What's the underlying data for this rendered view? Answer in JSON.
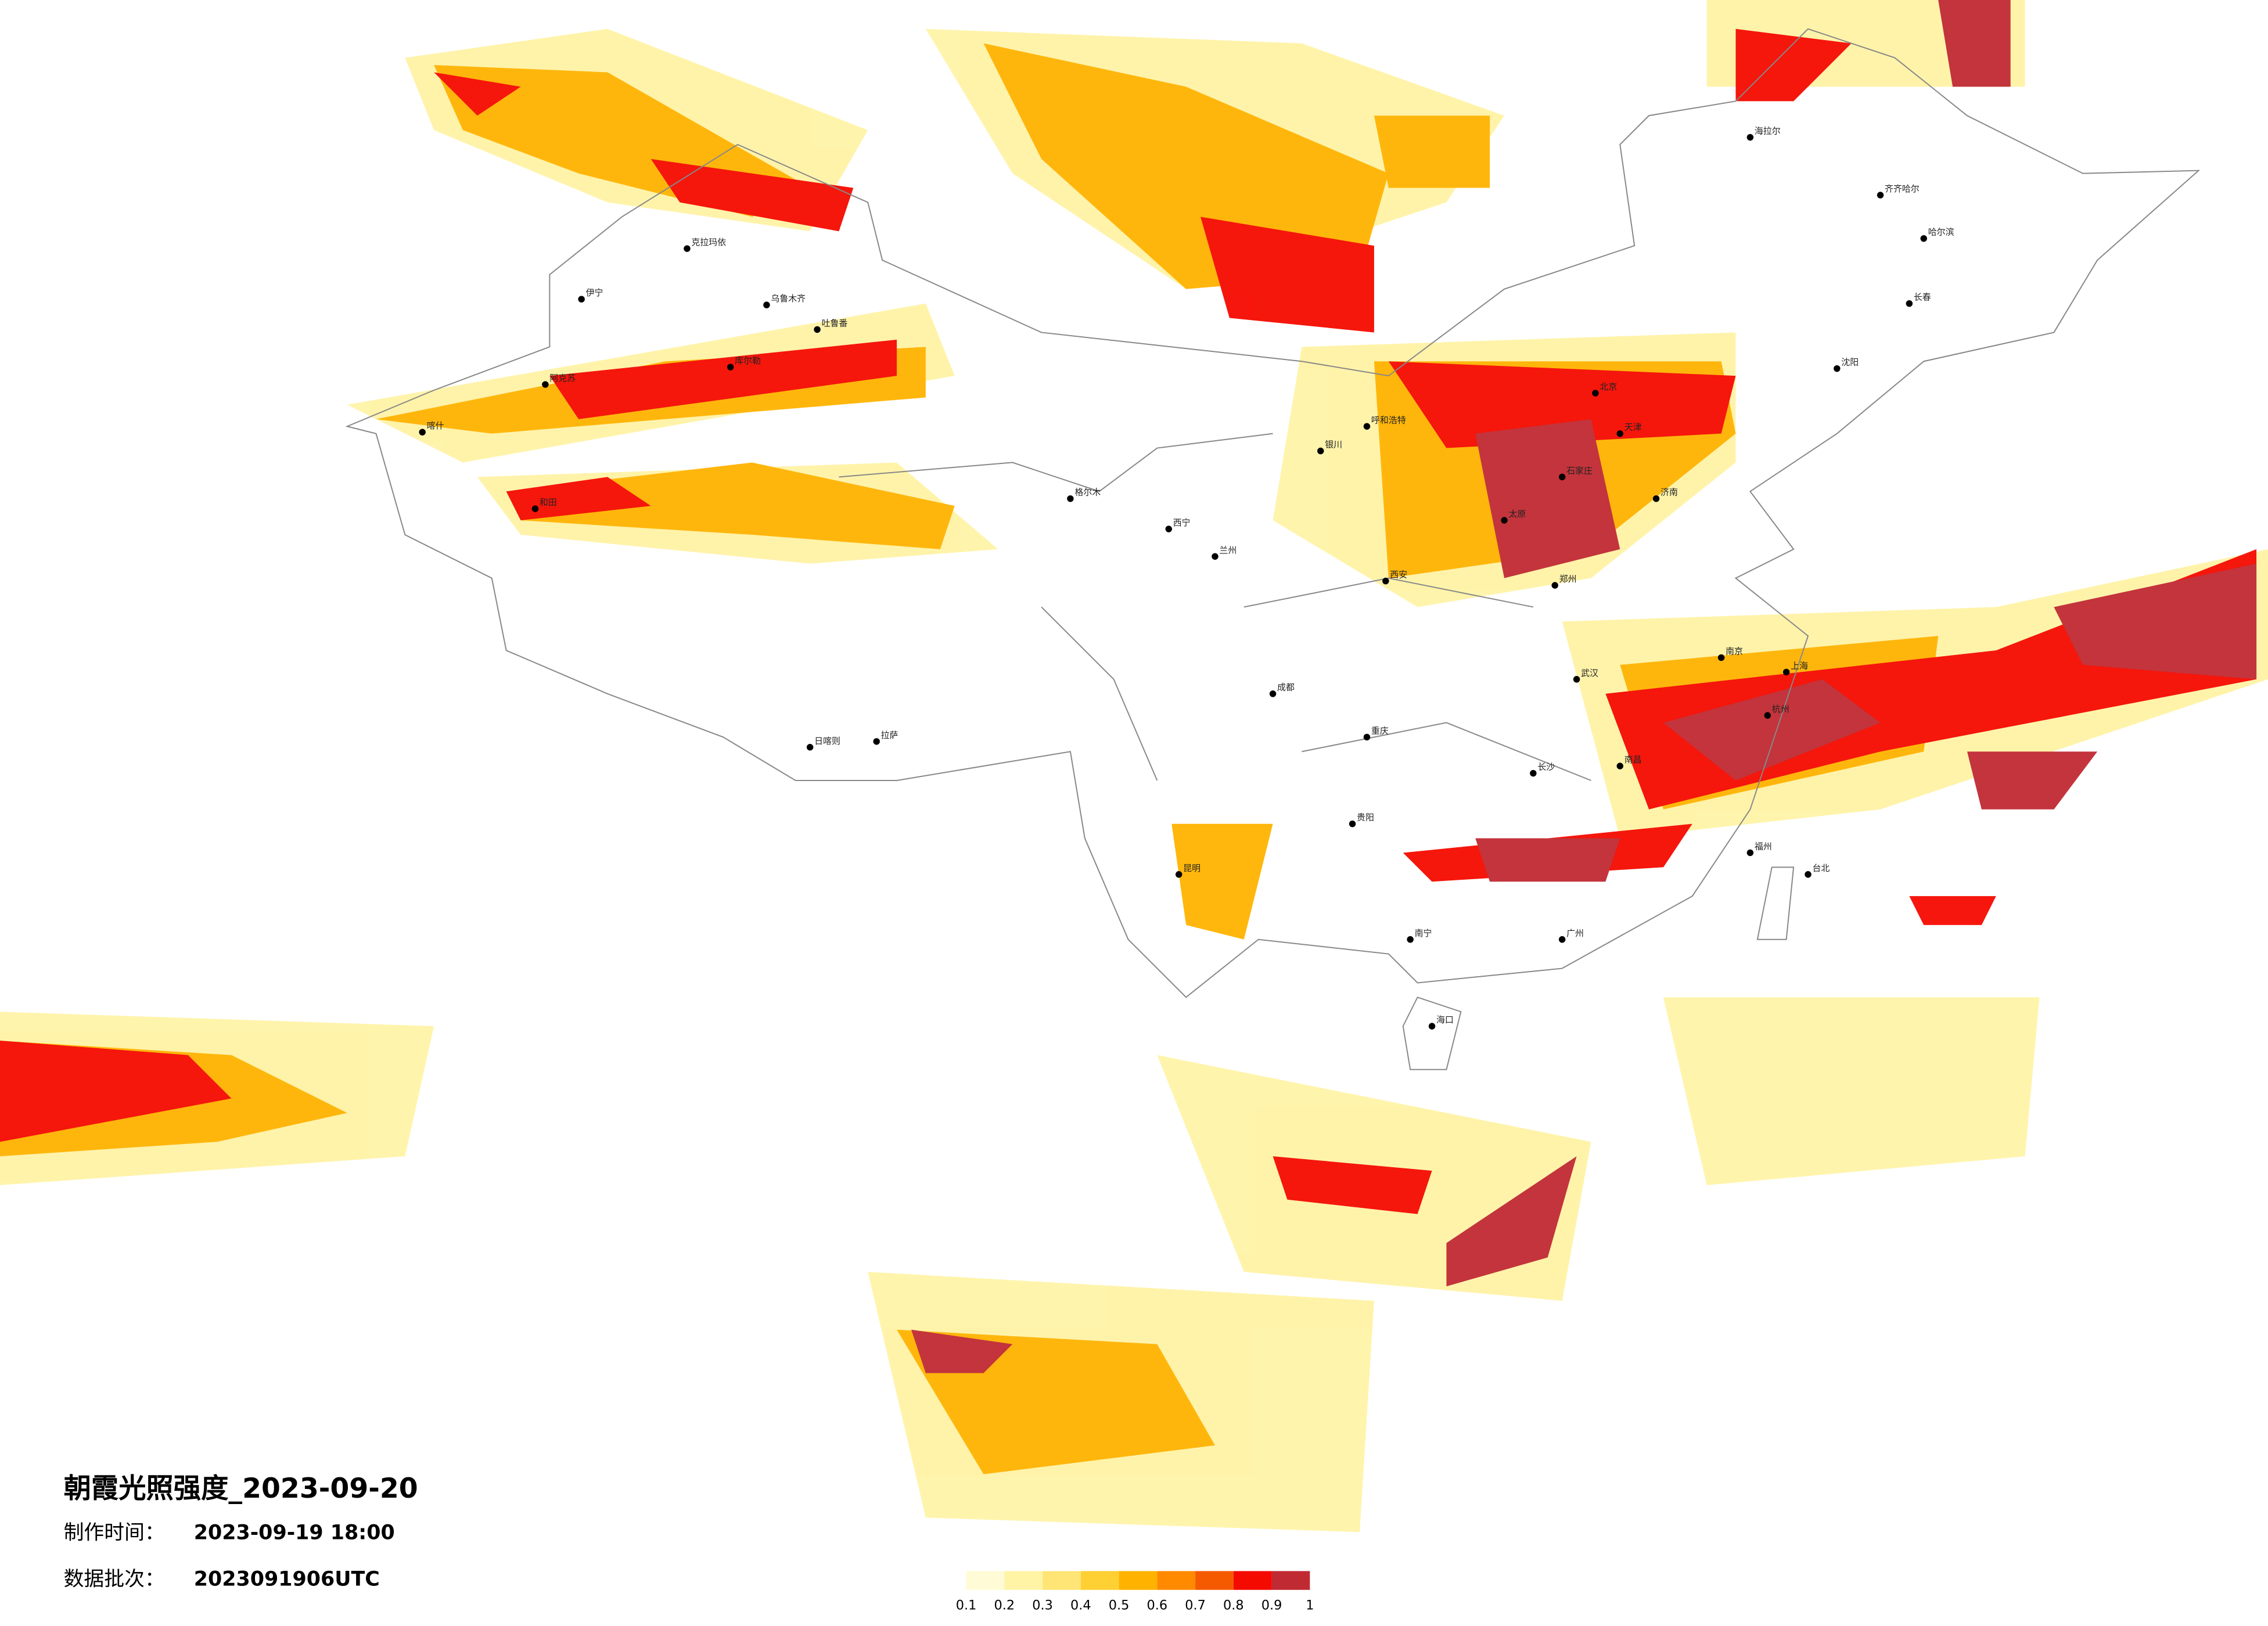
{
  "header": {
    "title": "朝霞光照强度_2023-09-20",
    "made_time": {
      "label": "制作时间：",
      "value": "2023-09-19 18:00"
    },
    "batch": {
      "label": "数据批次：",
      "value": "2023091906UTC"
    }
  },
  "legend": {
    "colors": [
      "#fffbd6",
      "#fff3a6",
      "#ffe476",
      "#ffd033",
      "#ffb300",
      "#ff8a00",
      "#f55a00",
      "#f50a00",
      "#c02a32"
    ],
    "ticks": [
      0.1,
      0.2,
      0.3,
      0.4,
      0.5,
      0.6,
      0.7,
      0.8,
      0.9,
      1
    ]
  },
  "cities": [
    "克拉玛依",
    "伊宁",
    "乌鲁木齐",
    "吐鲁番",
    "库尔勒",
    "阿克苏",
    "喀什",
    "和田",
    "格尔木",
    "拉萨",
    "日喀则",
    "西宁",
    "兰州",
    "银川",
    "呼和浩特",
    "北京",
    "天津",
    "石家庄",
    "太原",
    "西安",
    "郑州",
    "济南",
    "成都",
    "重庆",
    "武汉",
    "南京",
    "上海",
    "杭州",
    "长沙",
    "南昌",
    "福州",
    "广州",
    "南宁",
    "昆明",
    "贵阳",
    "海口",
    "哈尔滨",
    "长春",
    "沈阳",
    "台北",
    "海拉尔",
    "齐齐哈尔"
  ]
}
